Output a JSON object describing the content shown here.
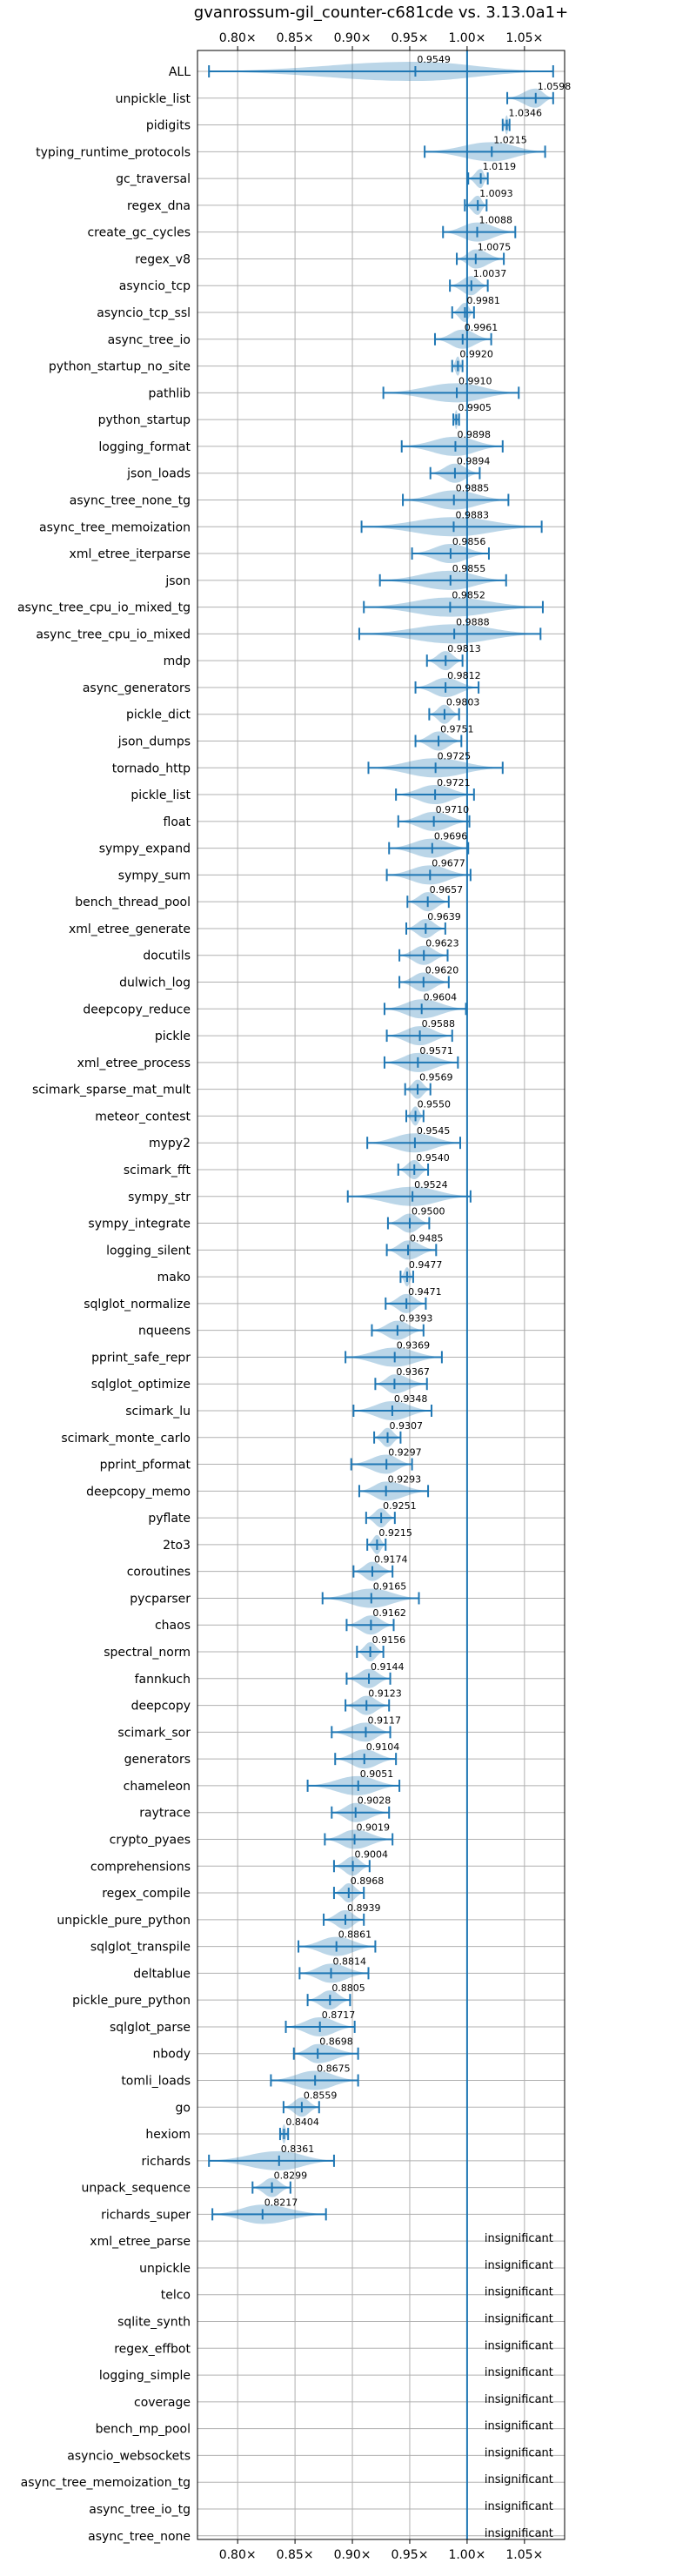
{
  "chart_data": {
    "type": "violin",
    "title": "gvanrossum-gil_counter-c681cde vs. 3.13.0a1+",
    "xlim": [
      0.765,
      1.085
    ],
    "xticks": [
      0.8,
      0.85,
      0.9,
      0.95,
      1.0,
      1.05
    ],
    "xtick_labels": [
      "0.80×",
      "0.85×",
      "0.90×",
      "0.95×",
      "1.00×",
      "1.05×"
    ],
    "reference_line": 1.0,
    "grid": true,
    "insignificant_label": "insignificant",
    "benchmarks": [
      {
        "name": "ALL",
        "median": 0.9549,
        "min": 0.775,
        "max": 1.075
      },
      {
        "name": "unpickle_list",
        "median": 1.0598,
        "min": 1.035,
        "max": 1.075
      },
      {
        "name": "pidigits",
        "median": 1.0346,
        "min": 1.031,
        "max": 1.037
      },
      {
        "name": "typing_runtime_protocols",
        "median": 1.0215,
        "min": 0.963,
        "max": 1.068
      },
      {
        "name": "gc_traversal",
        "median": 1.0119,
        "min": 1.001,
        "max": 1.018
      },
      {
        "name": "regex_dna",
        "median": 1.0093,
        "min": 0.998,
        "max": 1.017
      },
      {
        "name": "create_gc_cycles",
        "median": 1.0088,
        "min": 0.979,
        "max": 1.042
      },
      {
        "name": "regex_v8",
        "median": 1.0075,
        "min": 0.991,
        "max": 1.032
      },
      {
        "name": "asyncio_tcp",
        "median": 1.0037,
        "min": 0.985,
        "max": 1.018
      },
      {
        "name": "asyncio_tcp_ssl",
        "median": 0.9981,
        "min": 0.987,
        "max": 1.006
      },
      {
        "name": "async_tree_io",
        "median": 0.9961,
        "min": 0.972,
        "max": 1.021
      },
      {
        "name": "python_startup_no_site",
        "median": 0.992,
        "min": 0.987,
        "max": 0.996
      },
      {
        "name": "pathlib",
        "median": 0.991,
        "min": 0.927,
        "max": 1.045
      },
      {
        "name": "python_startup",
        "median": 0.9905,
        "min": 0.988,
        "max": 0.993
      },
      {
        "name": "logging_format",
        "median": 0.9898,
        "min": 0.943,
        "max": 1.031
      },
      {
        "name": "json_loads",
        "median": 0.9894,
        "min": 0.968,
        "max": 1.011
      },
      {
        "name": "async_tree_none_tg",
        "median": 0.9885,
        "min": 0.944,
        "max": 1.036
      },
      {
        "name": "async_tree_memoization",
        "median": 0.9883,
        "min": 0.908,
        "max": 1.065
      },
      {
        "name": "xml_etree_iterparse",
        "median": 0.9856,
        "min": 0.952,
        "max": 1.019
      },
      {
        "name": "json",
        "median": 0.9855,
        "min": 0.924,
        "max": 1.034
      },
      {
        "name": "async_tree_cpu_io_mixed_tg",
        "median": 0.9852,
        "min": 0.91,
        "max": 1.066
      },
      {
        "name": "async_tree_cpu_io_mixed",
        "median": 0.9888,
        "min": 0.906,
        "max": 1.064
      },
      {
        "name": "mdp",
        "median": 0.9813,
        "min": 0.965,
        "max": 0.996
      },
      {
        "name": "async_generators",
        "median": 0.9812,
        "min": 0.955,
        "max": 1.01
      },
      {
        "name": "pickle_dict",
        "median": 0.9803,
        "min": 0.967,
        "max": 0.993
      },
      {
        "name": "json_dumps",
        "median": 0.9751,
        "min": 0.955,
        "max": 0.995
      },
      {
        "name": "tornado_http",
        "median": 0.9725,
        "min": 0.914,
        "max": 1.031
      },
      {
        "name": "pickle_list",
        "median": 0.9721,
        "min": 0.938,
        "max": 1.006
      },
      {
        "name": "float",
        "median": 0.971,
        "min": 0.94,
        "max": 1.002
      },
      {
        "name": "sympy_expand",
        "median": 0.9696,
        "min": 0.932,
        "max": 1.001
      },
      {
        "name": "sympy_sum",
        "median": 0.9677,
        "min": 0.93,
        "max": 1.003
      },
      {
        "name": "bench_thread_pool",
        "median": 0.9657,
        "min": 0.948,
        "max": 0.984
      },
      {
        "name": "xml_etree_generate",
        "median": 0.9639,
        "min": 0.947,
        "max": 0.981
      },
      {
        "name": "docutils",
        "median": 0.9623,
        "min": 0.941,
        "max": 0.983
      },
      {
        "name": "dulwich_log",
        "median": 0.962,
        "min": 0.941,
        "max": 0.984
      },
      {
        "name": "deepcopy_reduce",
        "median": 0.9604,
        "min": 0.928,
        "max": 0.999
      },
      {
        "name": "pickle",
        "median": 0.9588,
        "min": 0.93,
        "max": 0.987
      },
      {
        "name": "xml_etree_process",
        "median": 0.9571,
        "min": 0.928,
        "max": 0.992
      },
      {
        "name": "scimark_sparse_mat_mult",
        "median": 0.9569,
        "min": 0.946,
        "max": 0.968
      },
      {
        "name": "meteor_contest",
        "median": 0.955,
        "min": 0.947,
        "max": 0.962
      },
      {
        "name": "mypy2",
        "median": 0.9545,
        "min": 0.913,
        "max": 0.994
      },
      {
        "name": "scimark_fft",
        "median": 0.954,
        "min": 0.94,
        "max": 0.966
      },
      {
        "name": "sympy_str",
        "median": 0.9524,
        "min": 0.896,
        "max": 1.003
      },
      {
        "name": "sympy_integrate",
        "median": 0.95,
        "min": 0.931,
        "max": 0.967
      },
      {
        "name": "logging_silent",
        "median": 0.9485,
        "min": 0.93,
        "max": 0.973
      },
      {
        "name": "mako",
        "median": 0.9477,
        "min": 0.942,
        "max": 0.953
      },
      {
        "name": "sqlglot_normalize",
        "median": 0.9471,
        "min": 0.929,
        "max": 0.964
      },
      {
        "name": "nqueens",
        "median": 0.9393,
        "min": 0.917,
        "max": 0.962
      },
      {
        "name": "pprint_safe_repr",
        "median": 0.9369,
        "min": 0.894,
        "max": 0.978
      },
      {
        "name": "sqlglot_optimize",
        "median": 0.9367,
        "min": 0.92,
        "max": 0.965
      },
      {
        "name": "scimark_lu",
        "median": 0.9348,
        "min": 0.901,
        "max": 0.969
      },
      {
        "name": "scimark_monte_carlo",
        "median": 0.9307,
        "min": 0.919,
        "max": 0.942
      },
      {
        "name": "pprint_pformat",
        "median": 0.9297,
        "min": 0.899,
        "max": 0.952
      },
      {
        "name": "deepcopy_memo",
        "median": 0.9293,
        "min": 0.906,
        "max": 0.966
      },
      {
        "name": "pyflate",
        "median": 0.9251,
        "min": 0.912,
        "max": 0.937
      },
      {
        "name": "2to3",
        "median": 0.9215,
        "min": 0.913,
        "max": 0.929
      },
      {
        "name": "coroutines",
        "median": 0.9174,
        "min": 0.901,
        "max": 0.935
      },
      {
        "name": "pycparser",
        "median": 0.9165,
        "min": 0.874,
        "max": 0.958
      },
      {
        "name": "chaos",
        "median": 0.9162,
        "min": 0.895,
        "max": 0.936
      },
      {
        "name": "spectral_norm",
        "median": 0.9156,
        "min": 0.904,
        "max": 0.927
      },
      {
        "name": "fannkuch",
        "median": 0.9144,
        "min": 0.895,
        "max": 0.933
      },
      {
        "name": "deepcopy",
        "median": 0.9123,
        "min": 0.894,
        "max": 0.932
      },
      {
        "name": "scimark_sor",
        "median": 0.9117,
        "min": 0.882,
        "max": 0.933
      },
      {
        "name": "generators",
        "median": 0.9104,
        "min": 0.885,
        "max": 0.938
      },
      {
        "name": "chameleon",
        "median": 0.9051,
        "min": 0.861,
        "max": 0.941
      },
      {
        "name": "raytrace",
        "median": 0.9028,
        "min": 0.882,
        "max": 0.932
      },
      {
        "name": "crypto_pyaes",
        "median": 0.9019,
        "min": 0.876,
        "max": 0.935
      },
      {
        "name": "comprehensions",
        "median": 0.9004,
        "min": 0.884,
        "max": 0.915
      },
      {
        "name": "regex_compile",
        "median": 0.8968,
        "min": 0.884,
        "max": 0.91
      },
      {
        "name": "unpickle_pure_python",
        "median": 0.8939,
        "min": 0.875,
        "max": 0.91
      },
      {
        "name": "sqlglot_transpile",
        "median": 0.8861,
        "min": 0.853,
        "max": 0.92
      },
      {
        "name": "deltablue",
        "median": 0.8814,
        "min": 0.854,
        "max": 0.914
      },
      {
        "name": "pickle_pure_python",
        "median": 0.8805,
        "min": 0.861,
        "max": 0.898
      },
      {
        "name": "sqlglot_parse",
        "median": 0.8717,
        "min": 0.842,
        "max": 0.902
      },
      {
        "name": "nbody",
        "median": 0.8698,
        "min": 0.849,
        "max": 0.905
      },
      {
        "name": "tomli_loads",
        "median": 0.8675,
        "min": 0.829,
        "max": 0.905
      },
      {
        "name": "go",
        "median": 0.8559,
        "min": 0.84,
        "max": 0.871
      },
      {
        "name": "hexiom",
        "median": 0.8404,
        "min": 0.837,
        "max": 0.844
      },
      {
        "name": "richards",
        "median": 0.8361,
        "min": 0.775,
        "max": 0.884
      },
      {
        "name": "unpack_sequence",
        "median": 0.8299,
        "min": 0.813,
        "max": 0.846
      },
      {
        "name": "richards_super",
        "median": 0.8217,
        "min": 0.778,
        "max": 0.877
      },
      {
        "name": "xml_etree_parse",
        "insignificant": true
      },
      {
        "name": "unpickle",
        "insignificant": true
      },
      {
        "name": "telco",
        "insignificant": true
      },
      {
        "name": "sqlite_synth",
        "insignificant": true
      },
      {
        "name": "regex_effbot",
        "insignificant": true
      },
      {
        "name": "logging_simple",
        "insignificant": true
      },
      {
        "name": "coverage",
        "insignificant": true
      },
      {
        "name": "bench_mp_pool",
        "insignificant": true
      },
      {
        "name": "asyncio_websockets",
        "insignificant": true
      },
      {
        "name": "async_tree_memoization_tg",
        "insignificant": true
      },
      {
        "name": "async_tree_io_tg",
        "insignificant": true
      },
      {
        "name": "async_tree_none",
        "insignificant": true
      }
    ]
  }
}
